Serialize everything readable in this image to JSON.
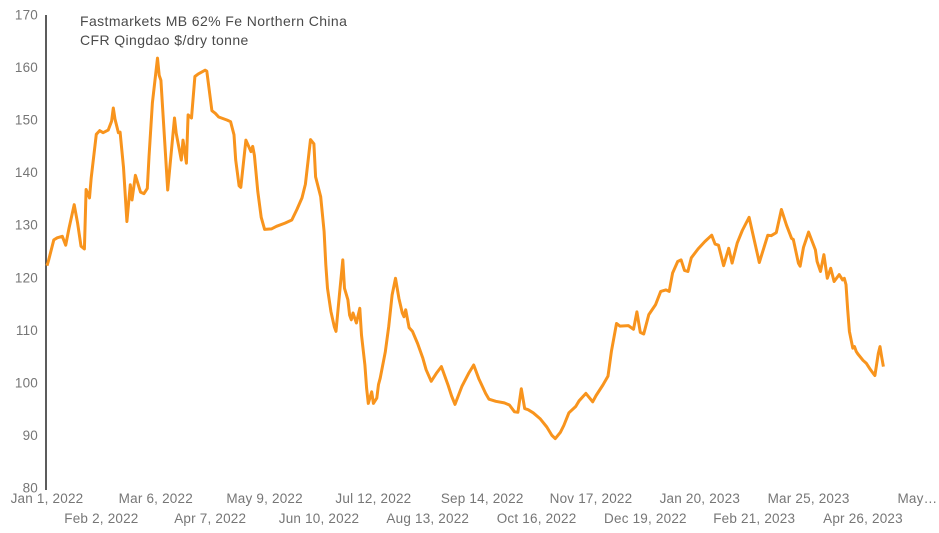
{
  "title": {
    "line1": "Fastmarkets MB 62% Fe Northern China",
    "line2": "CFR Qingdao $/dry tonne"
  },
  "colors": {
    "line": "#F8941D",
    "title": "#4A4A4A",
    "tick_label": "#767676",
    "axis": "#333333",
    "background": "#FFFFFF"
  },
  "chart_data": {
    "type": "line",
    "title": "Fastmarkets MB 62% Fe Northern China CFR Qingdao $/dry tonne",
    "ylabel": "",
    "xlabel": "",
    "unit": "$/dry tonne",
    "ylim": [
      80,
      170
    ],
    "grid": false,
    "legend_position": "none",
    "y_ticks": [
      170,
      160,
      150,
      140,
      130,
      120,
      110,
      100,
      90,
      80
    ],
    "x_ticks": [
      {
        "label": "Jan 1, 2022",
        "day": 0
      },
      {
        "label": "Feb 2, 2022",
        "day": 32
      },
      {
        "label": "Mar 6, 2022",
        "day": 64
      },
      {
        "label": "Apr 7, 2022",
        "day": 96
      },
      {
        "label": "May 9, 2022",
        "day": 128
      },
      {
        "label": "Jun 10, 2022",
        "day": 160
      },
      {
        "label": "Jul 12, 2022",
        "day": 192
      },
      {
        "label": "Aug 13, 2022",
        "day": 224
      },
      {
        "label": "Sep 14, 2022",
        "day": 256
      },
      {
        "label": "Oct 16, 2022",
        "day": 288
      },
      {
        "label": "Nov 17, 2022",
        "day": 320
      },
      {
        "label": "Dec 19, 2022",
        "day": 352
      },
      {
        "label": "Jan 20, 2023",
        "day": 384
      },
      {
        "label": "Feb 21, 2023",
        "day": 416
      },
      {
        "label": "Mar 25, 2023",
        "day": 448
      },
      {
        "label": "Apr 26, 2023",
        "day": 480
      },
      {
        "label": "May…",
        "day": 512
      }
    ],
    "points_format": "[days since Jan 1 2022, price $/dry tonne]",
    "points": [
      [
        0,
        122.3
      ],
      [
        1,
        123.4
      ],
      [
        4,
        127.2
      ],
      [
        6,
        127.6
      ],
      [
        9,
        127.9
      ],
      [
        11,
        126.2
      ],
      [
        13,
        129.5
      ],
      [
        16,
        133.9
      ],
      [
        18,
        130.4
      ],
      [
        20,
        126.0
      ],
      [
        22,
        125.5
      ],
      [
        23,
        136.8
      ],
      [
        25,
        135.2
      ],
      [
        26,
        139.0
      ],
      [
        29,
        147.3
      ],
      [
        31,
        148.0
      ],
      [
        33,
        147.6
      ],
      [
        36,
        148.1
      ],
      [
        38,
        149.8
      ],
      [
        39,
        152.3
      ],
      [
        40,
        150.2
      ],
      [
        42,
        147.6
      ],
      [
        43,
        147.7
      ],
      [
        45,
        141.0
      ],
      [
        47,
        130.7
      ],
      [
        49,
        137.7
      ],
      [
        50,
        134.8
      ],
      [
        52,
        139.5
      ],
      [
        55,
        136.3
      ],
      [
        57,
        136.0
      ],
      [
        59,
        137.0
      ],
      [
        60,
        143.0
      ],
      [
        62,
        153.3
      ],
      [
        65,
        161.8
      ],
      [
        66,
        158.5
      ],
      [
        67,
        157.6
      ],
      [
        71,
        136.7
      ],
      [
        75,
        150.4
      ],
      [
        76,
        147.5
      ],
      [
        79,
        142.4
      ],
      [
        80,
        146.2
      ],
      [
        82,
        141.8
      ],
      [
        83,
        151.0
      ],
      [
        85,
        150.4
      ],
      [
        87,
        158.3
      ],
      [
        89,
        158.8
      ],
      [
        93,
        159.5
      ],
      [
        94,
        159.3
      ],
      [
        97,
        151.8
      ],
      [
        99,
        151.3
      ],
      [
        101,
        150.6
      ],
      [
        106,
        150.0
      ],
      [
        108,
        149.7
      ],
      [
        110,
        147.2
      ],
      [
        111,
        142.4
      ],
      [
        113,
        137.5
      ],
      [
        114,
        137.2
      ],
      [
        117,
        146.2
      ],
      [
        120,
        144.0
      ],
      [
        121,
        145.0
      ],
      [
        122,
        143.3
      ],
      [
        124,
        136.4
      ],
      [
        126,
        131.5
      ],
      [
        128,
        129.2
      ],
      [
        132,
        129.3
      ],
      [
        135,
        129.8
      ],
      [
        140,
        130.4
      ],
      [
        144,
        131.0
      ],
      [
        147,
        133.0
      ],
      [
        150,
        135.2
      ],
      [
        152,
        137.8
      ],
      [
        155,
        146.3
      ],
      [
        157,
        145.5
      ],
      [
        158,
        139.2
      ],
      [
        161,
        135.4
      ],
      [
        163,
        128.8
      ],
      [
        164,
        122.5
      ],
      [
        165,
        118.0
      ],
      [
        167,
        113.6
      ],
      [
        169,
        110.7
      ],
      [
        170,
        109.8
      ],
      [
        172,
        116.7
      ],
      [
        174,
        123.4
      ],
      [
        175,
        118.0
      ],
      [
        177,
        115.8
      ],
      [
        178,
        112.9
      ],
      [
        179,
        112.0
      ],
      [
        180,
        113.3
      ],
      [
        182,
        111.4
      ],
      [
        184,
        114.2
      ],
      [
        185,
        109.1
      ],
      [
        187,
        103.4
      ],
      [
        188,
        99.0
      ],
      [
        189,
        96.1
      ],
      [
        191,
        98.3
      ],
      [
        192,
        96.1
      ],
      [
        194,
        97.1
      ],
      [
        195,
        99.7
      ],
      [
        196,
        100.9
      ],
      [
        199,
        105.9
      ],
      [
        201,
        110.7
      ],
      [
        203,
        116.7
      ],
      [
        205,
        119.9
      ],
      [
        207,
        116.1
      ],
      [
        209,
        113.3
      ],
      [
        210,
        112.6
      ],
      [
        211,
        113.9
      ],
      [
        213,
        110.5
      ],
      [
        215,
        109.8
      ],
      [
        218,
        107.5
      ],
      [
        221,
        104.8
      ],
      [
        223,
        102.5
      ],
      [
        226,
        100.3
      ],
      [
        229,
        101.8
      ],
      [
        232,
        103.1
      ],
      [
        236,
        99.5
      ],
      [
        238,
        97.5
      ],
      [
        240,
        95.9
      ],
      [
        244,
        99.3
      ],
      [
        248,
        101.8
      ],
      [
        251,
        103.4
      ],
      [
        254,
        100.8
      ],
      [
        258,
        98.0
      ],
      [
        260,
        96.9
      ],
      [
        264,
        96.5
      ],
      [
        269,
        96.2
      ],
      [
        272,
        95.8
      ],
      [
        275,
        94.5
      ],
      [
        277,
        94.4
      ],
      [
        279,
        98.9
      ],
      [
        281,
        95.1
      ],
      [
        283,
        94.9
      ],
      [
        286,
        94.3
      ],
      [
        290,
        93.2
      ],
      [
        294,
        91.6
      ],
      [
        297,
        90.0
      ],
      [
        299,
        89.4
      ],
      [
        302,
        90.6
      ],
      [
        304,
        91.9
      ],
      [
        307,
        94.3
      ],
      [
        311,
        95.5
      ],
      [
        313,
        96.6
      ],
      [
        317,
        98.0
      ],
      [
        321,
        96.4
      ],
      [
        323,
        97.6
      ],
      [
        327,
        99.6
      ],
      [
        330,
        101.3
      ],
      [
        332,
        106.0
      ],
      [
        335,
        111.3
      ],
      [
        337,
        110.8
      ],
      [
        342,
        110.9
      ],
      [
        345,
        110.2
      ],
      [
        347,
        113.5
      ],
      [
        349,
        109.6
      ],
      [
        351,
        109.3
      ],
      [
        354,
        113.0
      ],
      [
        358,
        114.9
      ],
      [
        361,
        117.4
      ],
      [
        364,
        117.7
      ],
      [
        366,
        117.4
      ],
      [
        368,
        120.9
      ],
      [
        371,
        123.1
      ],
      [
        373,
        123.4
      ],
      [
        375,
        121.4
      ],
      [
        377,
        121.2
      ],
      [
        379,
        123.8
      ],
      [
        383,
        125.5
      ],
      [
        387,
        126.9
      ],
      [
        391,
        128.1
      ],
      [
        393,
        126.4
      ],
      [
        395,
        126.2
      ],
      [
        398,
        122.3
      ],
      [
        401,
        125.6
      ],
      [
        403,
        122.8
      ],
      [
        406,
        126.6
      ],
      [
        409,
        129.0
      ],
      [
        413,
        131.5
      ],
      [
        416,
        127.2
      ],
      [
        419,
        122.9
      ],
      [
        424,
        128.1
      ],
      [
        426,
        128.0
      ],
      [
        429,
        128.6
      ],
      [
        432,
        133.0
      ],
      [
        435,
        130.0
      ],
      [
        438,
        127.5
      ],
      [
        439,
        127.3
      ],
      [
        442,
        122.8
      ],
      [
        443,
        122.2
      ],
      [
        445,
        125.8
      ],
      [
        448,
        128.7
      ],
      [
        452,
        125.3
      ],
      [
        453,
        123.1
      ],
      [
        455,
        121.2
      ],
      [
        457,
        124.4
      ],
      [
        459,
        119.9
      ],
      [
        461,
        121.8
      ],
      [
        463,
        119.3
      ],
      [
        466,
        120.6
      ],
      [
        468,
        119.6
      ],
      [
        469,
        119.9
      ],
      [
        470,
        118.7
      ],
      [
        471,
        113.9
      ],
      [
        472,
        109.8
      ],
      [
        473,
        108.2
      ],
      [
        474,
        106.6
      ],
      [
        475,
        106.9
      ],
      [
        476,
        106.0
      ],
      [
        477,
        105.5
      ],
      [
        480,
        104.3
      ],
      [
        482,
        103.7
      ],
      [
        484,
        102.7
      ],
      [
        486,
        101.8
      ],
      [
        487,
        101.4
      ],
      [
        489,
        105.6
      ],
      [
        490,
        106.9
      ],
      [
        491,
        104.9
      ],
      [
        492,
        103.1
      ]
    ]
  }
}
